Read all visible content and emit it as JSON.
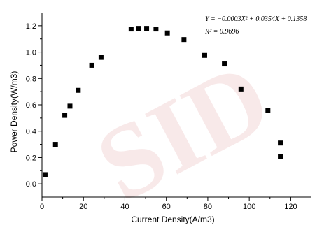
{
  "chart_data": {
    "type": "scatter",
    "xlabel": "Current Density(A/m3)",
    "ylabel": "Power Density(W/m3)",
    "xlim": [
      0,
      130
    ],
    "ylim": [
      -0.1,
      1.3
    ],
    "xticks": [
      0,
      20,
      40,
      60,
      80,
      100,
      120
    ],
    "yticks": [
      0.0,
      0.2,
      0.4,
      0.6,
      0.8,
      1.0,
      1.2
    ],
    "xtick_labels": [
      "0",
      "20",
      "40",
      "60",
      "80",
      "100",
      "120"
    ],
    "ytick_labels": [
      "0.0",
      "0.2",
      "0.4",
      "0.6",
      "0.8",
      "1.0",
      "1.2"
    ],
    "grid": false,
    "legend": false,
    "annotations": {
      "equation": "Y = −0.0003X² + 0.0354X + 0.1358",
      "r_squared": "R² = 0.9696"
    },
    "x": [
      1.5,
      6.5,
      11,
      13.5,
      17.5,
      24,
      28.5,
      43,
      46.5,
      50.5,
      55,
      60.5,
      68.5,
      78.5,
      88,
      96,
      109,
      115,
      115
    ],
    "y": [
      0.07,
      0.3,
      0.52,
      0.59,
      0.71,
      0.9,
      0.96,
      1.175,
      1.18,
      1.18,
      1.175,
      1.145,
      1.095,
      0.975,
      0.91,
      0.72,
      0.555,
      0.31,
      0.21
    ]
  },
  "watermark": "SID"
}
